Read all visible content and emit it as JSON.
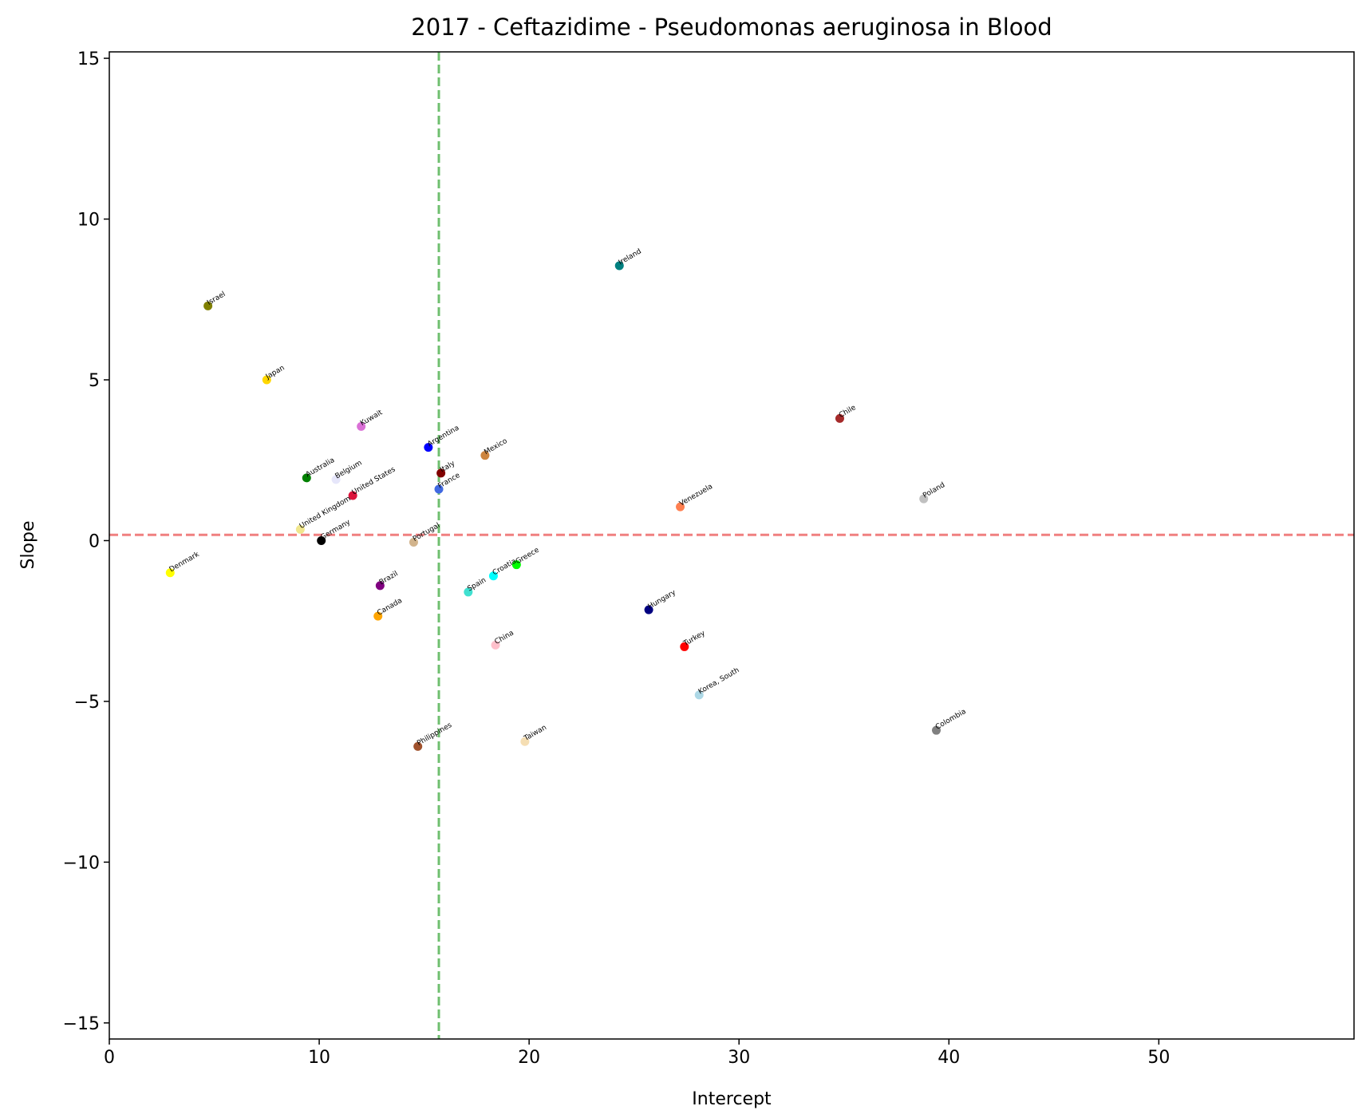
{
  "chart_data": {
    "type": "scatter",
    "title": "2017 - Ceftazidime - Pseudomonas aeruginosa in Blood",
    "xlabel": "Intercept",
    "ylabel": "Slope",
    "xlim": [
      0,
      59.3
    ],
    "ylim": [
      -15.5,
      15.2
    ],
    "xticks": [
      0,
      10,
      20,
      30,
      40,
      50
    ],
    "yticks": [
      -15,
      -10,
      -5,
      0,
      5,
      10,
      15
    ],
    "xtick_labels": [
      "0",
      "10",
      "20",
      "30",
      "40",
      "50"
    ],
    "ytick_labels": [
      "−15",
      "−10",
      "−5",
      "0",
      "5",
      "10",
      "15"
    ],
    "hline": {
      "y": 0.18,
      "color": "#f08080"
    },
    "vline": {
      "x": 15.7,
      "color": "#6fbf6f"
    },
    "grid": false,
    "points": [
      {
        "name": "Israel",
        "x": 4.7,
        "y": 7.3,
        "color": "#808000"
      },
      {
        "name": "Japan",
        "x": 7.5,
        "y": 5.0,
        "color": "#ffd700"
      },
      {
        "name": "Kuwait",
        "x": 12.0,
        "y": 3.55,
        "color": "#da70d6"
      },
      {
        "name": "Argentina",
        "x": 15.2,
        "y": 2.9,
        "color": "#0000ff"
      },
      {
        "name": "Australia",
        "x": 9.4,
        "y": 1.95,
        "color": "#008000"
      },
      {
        "name": "Belgium",
        "x": 10.8,
        "y": 1.9,
        "color": "#e6e6fa"
      },
      {
        "name": "United States",
        "x": 11.6,
        "y": 1.4,
        "color": "#dc143c"
      },
      {
        "name": "Italy",
        "x": 15.8,
        "y": 2.1,
        "color": "#800000"
      },
      {
        "name": "France",
        "x": 15.7,
        "y": 1.6,
        "color": "#4169e1"
      },
      {
        "name": "Mexico",
        "x": 17.9,
        "y": 2.65,
        "color": "#cd853f"
      },
      {
        "name": "Ireland",
        "x": 24.3,
        "y": 8.55,
        "color": "#008080"
      },
      {
        "name": "Chile",
        "x": 34.8,
        "y": 3.8,
        "color": "#a52a2a"
      },
      {
        "name": "Poland",
        "x": 38.8,
        "y": 1.3,
        "color": "#c0c0c0"
      },
      {
        "name": "Venezuela",
        "x": 27.2,
        "y": 1.05,
        "color": "#ff7f50"
      },
      {
        "name": "United Kingdom",
        "x": 9.1,
        "y": 0.35,
        "color": "#f0e68c"
      },
      {
        "name": "Germany",
        "x": 10.1,
        "y": 0.0,
        "color": "#000000"
      },
      {
        "name": "Portugal",
        "x": 14.5,
        "y": -0.05,
        "color": "#d2b48c"
      },
      {
        "name": "Denmark",
        "x": 2.9,
        "y": -1.0,
        "color": "#ffff00"
      },
      {
        "name": "Brazil",
        "x": 12.9,
        "y": -1.4,
        "color": "#800080"
      },
      {
        "name": "Canada",
        "x": 12.8,
        "y": -2.35,
        "color": "#ffa500"
      },
      {
        "name": "Spain",
        "x": 17.1,
        "y": -1.6,
        "color": "#40e0d0"
      },
      {
        "name": "Croatia",
        "x": 18.3,
        "y": -1.1,
        "color": "#00ffff"
      },
      {
        "name": "Greece",
        "x": 19.4,
        "y": -0.75,
        "color": "#00ff00"
      },
      {
        "name": "Hungary",
        "x": 25.7,
        "y": -2.15,
        "color": "#000080"
      },
      {
        "name": "Turkey",
        "x": 27.4,
        "y": -3.3,
        "color": "#ff0000"
      },
      {
        "name": "China",
        "x": 18.4,
        "y": -3.25,
        "color": "#ffc0cb"
      },
      {
        "name": "Korea, South",
        "x": 28.1,
        "y": -4.8,
        "color": "#add8e6"
      },
      {
        "name": "Colombia",
        "x": 39.4,
        "y": -5.9,
        "color": "#808080"
      },
      {
        "name": "Philippines",
        "x": 14.7,
        "y": -6.4,
        "color": "#a0522d"
      },
      {
        "name": "Taiwan",
        "x": 19.8,
        "y": -6.25,
        "color": "#f5deb3"
      }
    ]
  }
}
